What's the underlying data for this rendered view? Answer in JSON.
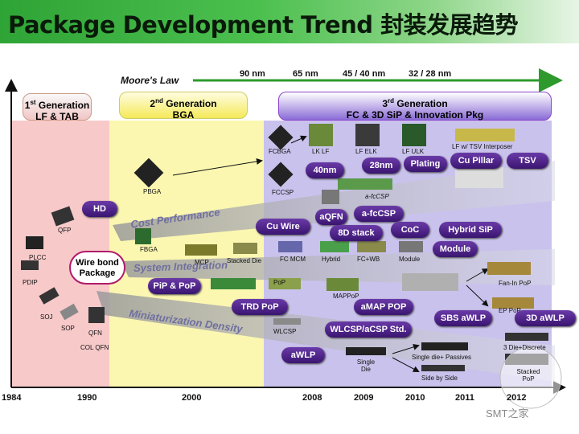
{
  "title": "Package Development Trend 封装发展趋势",
  "moores_law": {
    "label": "Moore's Law",
    "nodes": [
      "90 nm",
      "65 nm",
      "45 / 40 nm",
      "32 / 28 nm"
    ]
  },
  "generations": [
    {
      "line1_prefix": "1",
      "line1_sup": "st",
      "line1_rest": " Generation",
      "line2": "LF & TAB"
    },
    {
      "line1_prefix": "2",
      "line1_sup": "nd",
      "line1_rest": " Generation",
      "line2": "BGA"
    },
    {
      "line1_prefix": "3",
      "line1_sup": "rd",
      "line1_rest": " Generation",
      "line2": "FC & 3D SiP & Innovation Pkg"
    }
  ],
  "years": [
    "1984",
    "1990",
    "2000",
    "2008",
    "2009",
    "2010",
    "2011",
    "2012"
  ],
  "bands": {
    "cost": "Cost Performance",
    "system": "System Integration",
    "mini": "Miniaturization Density"
  },
  "center_node": "Wire bond Package",
  "packages": {
    "qfp": "QFP",
    "plcc": "PLCC",
    "pdip": "PDIP",
    "soj": "SOJ",
    "sop": "SOP",
    "qfn": "QFN",
    "col_qfn": "COL QFN",
    "pbga": "PBGA",
    "fbga": "FBGA",
    "mcp": "MCP",
    "stacked_die": "Stacked Die",
    "fcbga": "FCBGA",
    "lk_lf": "LK LF",
    "lf_elk": "LF ELK",
    "lf_ulk": "LF ULK",
    "lf_tsv": "LF w/ TSV Interposer",
    "fccsp": "FCCSP",
    "a_fccsp": "a-fcCSP",
    "fc_mcm": "FC MCM",
    "hybrid": "Hybrid",
    "fc_wb": "FC+WB",
    "module": "Module",
    "pop": "PoP",
    "mappop": "MAPPoP",
    "fanin": "Fan-In PoP",
    "ep_pop": "EP PoP",
    "wlcsp": "WLCSP",
    "single_die": "Single Die",
    "single_passives": "Single die+ Passives",
    "side_by_side": "Side by Side",
    "three_die": "3 Die+Discrete",
    "stacked_pop": "Stacked PoP"
  },
  "pills": {
    "hd": "HD",
    "nm40": "40nm",
    "nm28": "28nm",
    "plating": "Plating",
    "cu_pillar": "Cu Pillar",
    "tsv": "TSV",
    "aqfn": "aQFN",
    "afccsp": "a-fcCSP",
    "cu_wire": "Cu Wire",
    "stack8d": "8D stack",
    "coc": "CoC",
    "hybrid_sip": "Hybrid SiP",
    "module": "Module",
    "pip_pop": "PiP & PoP",
    "trd_pop": "TRD PoP",
    "amap_pop": "aMAP POP",
    "sbs_awlp": "SBS aWLP",
    "awlp3d": "3D aWLP",
    "wlcsp_std": "WLCSP/aCSP Std.",
    "awlp": "aWLP"
  },
  "watermark": "SMT之家",
  "colors": {
    "title_green": "#2fa436",
    "zone1": "#f7c9c9",
    "zone2": "#fbf7b0",
    "zone3": "#c9c2ec",
    "pill": "#4a2288",
    "moore_arrow": "#2e9a2e"
  }
}
